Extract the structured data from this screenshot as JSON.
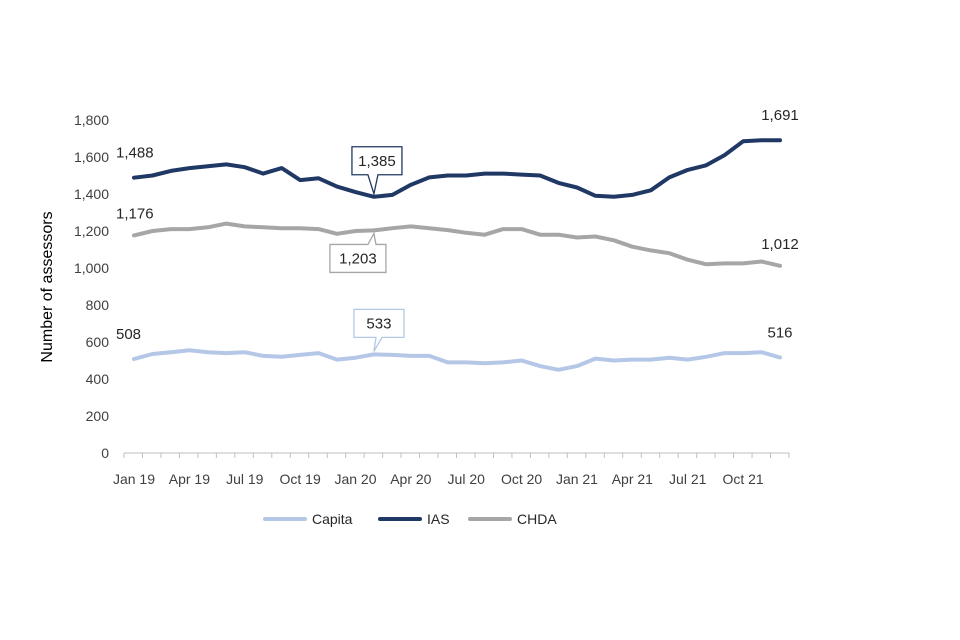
{
  "chart_data": {
    "type": "line",
    "ylabel": "Number of assessors",
    "xlabel": "",
    "ylim": [
      0,
      1800
    ],
    "yticks": [
      0,
      200,
      400,
      600,
      800,
      1000,
      1200,
      1400,
      1600,
      1800
    ],
    "ytick_labels": [
      "0",
      "200",
      "400",
      "600",
      "800",
      "1,000",
      "1,200",
      "1,400",
      "1,600",
      "1,800"
    ],
    "grid": false,
    "legend_position": "bottom",
    "x": [
      "Jan 19",
      "Feb 19",
      "Mar 19",
      "Apr 19",
      "May 19",
      "Jun 19",
      "Jul 19",
      "Aug 19",
      "Sep 19",
      "Oct 19",
      "Nov 19",
      "Dec 19",
      "Jan 20",
      "Feb 20",
      "Mar 20",
      "Apr 20",
      "May 20",
      "Jun 20",
      "Jul 20",
      "Aug 20",
      "Sep 20",
      "Oct 20",
      "Nov 20",
      "Dec 20",
      "Jan 21",
      "Feb 21",
      "Mar 21",
      "Apr 21",
      "May 21",
      "Jun 21",
      "Jul 21",
      "Aug 21",
      "Sep 21",
      "Oct 21",
      "Nov 21",
      "Dec 21"
    ],
    "xtick_labels": [
      {
        "index": 0,
        "label": "Jan 19"
      },
      {
        "index": 3,
        "label": "Apr 19"
      },
      {
        "index": 6,
        "label": "Jul 19"
      },
      {
        "index": 9,
        "label": "Oct 19"
      },
      {
        "index": 12,
        "label": "Jan 20"
      },
      {
        "index": 15,
        "label": "Apr 20"
      },
      {
        "index": 18,
        "label": "Jul 20"
      },
      {
        "index": 21,
        "label": "Oct 20"
      },
      {
        "index": 24,
        "label": "Jan 21"
      },
      {
        "index": 27,
        "label": "Apr 21"
      },
      {
        "index": 30,
        "label": "Jul 21"
      },
      {
        "index": 33,
        "label": "Oct 21"
      }
    ],
    "series": [
      {
        "name": "Capita",
        "color": "#B4C7E7",
        "values": [
          508,
          535,
          545,
          555,
          545,
          540,
          545,
          525,
          520,
          530,
          540,
          505,
          515,
          533,
          530,
          525,
          525,
          490,
          490,
          485,
          490,
          500,
          470,
          450,
          470,
          510,
          500,
          505,
          505,
          515,
          505,
          520,
          540,
          540,
          545,
          516
        ]
      },
      {
        "name": "IAS",
        "color": "#203864",
        "values": [
          1488,
          1500,
          1525,
          1540,
          1550,
          1560,
          1545,
          1510,
          1540,
          1475,
          1485,
          1440,
          1410,
          1385,
          1395,
          1450,
          1490,
          1500,
          1500,
          1510,
          1510,
          1505,
          1500,
          1460,
          1435,
          1390,
          1385,
          1395,
          1420,
          1490,
          1530,
          1555,
          1610,
          1685,
          1691,
          1691
        ]
      },
      {
        "name": "CHDA",
        "color": "#A6A6A6",
        "values": [
          1176,
          1200,
          1210,
          1210,
          1220,
          1240,
          1225,
          1220,
          1215,
          1215,
          1210,
          1185,
          1200,
          1203,
          1215,
          1225,
          1215,
          1205,
          1190,
          1180,
          1210,
          1210,
          1180,
          1180,
          1165,
          1170,
          1150,
          1115,
          1095,
          1080,
          1045,
          1020,
          1025,
          1025,
          1035,
          1012
        ]
      }
    ],
    "annotations": [
      {
        "series": "IAS",
        "index": 0,
        "text": "1,488",
        "style": "plain"
      },
      {
        "series": "IAS",
        "index": 13,
        "text": "1,385",
        "style": "callout"
      },
      {
        "series": "IAS",
        "index": 35,
        "text": "1,691",
        "style": "plain"
      },
      {
        "series": "CHDA",
        "index": 0,
        "text": "1,176",
        "style": "plain"
      },
      {
        "series": "CHDA",
        "index": 13,
        "text": "1,203",
        "style": "callout"
      },
      {
        "series": "CHDA",
        "index": 35,
        "text": "1,012",
        "style": "plain"
      },
      {
        "series": "Capita",
        "index": 0,
        "text": "508",
        "style": "plain"
      },
      {
        "series": "Capita",
        "index": 13,
        "text": "533",
        "style": "callout"
      },
      {
        "series": "Capita",
        "index": 35,
        "text": "516",
        "style": "plain"
      }
    ]
  }
}
